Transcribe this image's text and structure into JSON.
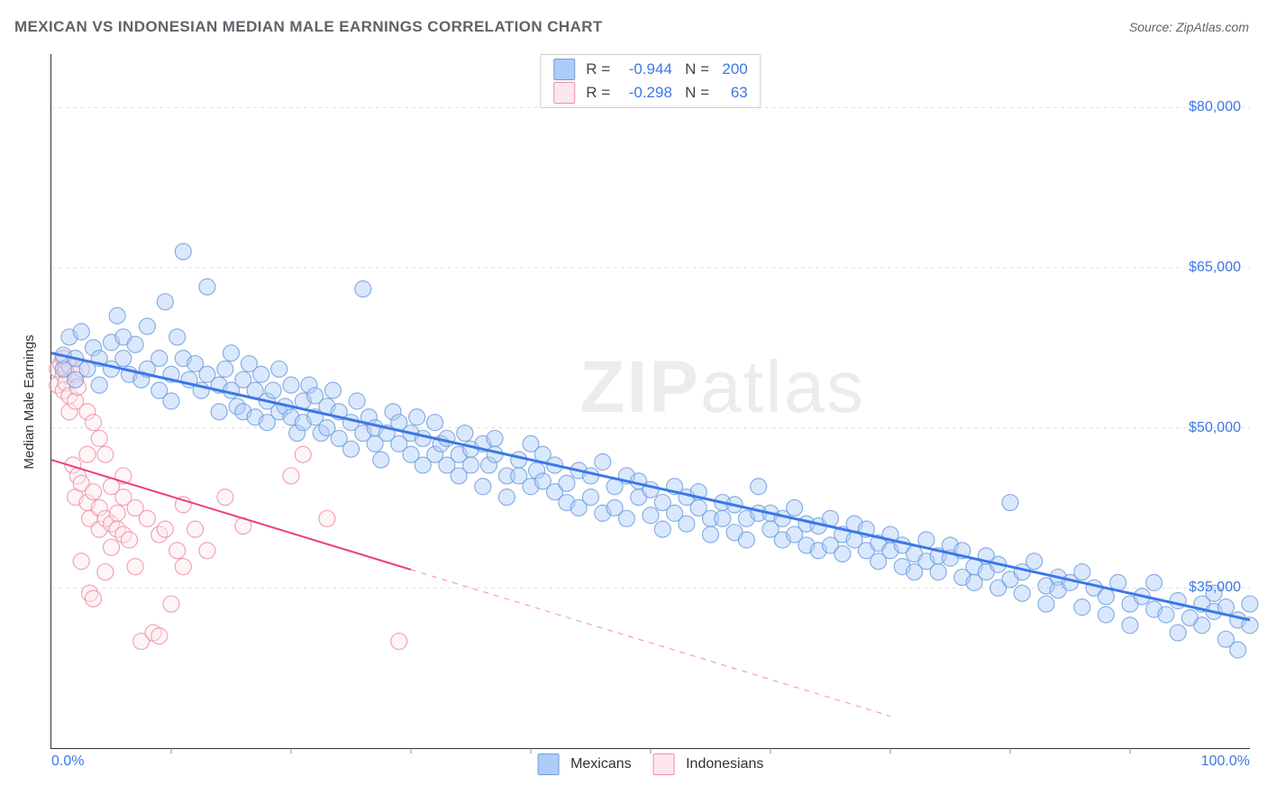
{
  "title": "MEXICAN VS INDONESIAN MEDIAN MALE EARNINGS CORRELATION CHART",
  "source_label": "Source: ZipAtlas.com",
  "ylabel": "Median Male Earnings",
  "watermark_zip": "ZIP",
  "watermark_atlas": "atlas",
  "chart": {
    "type": "scatter",
    "xlim": [
      0,
      100
    ],
    "ylim": [
      20000,
      85000
    ],
    "y_ticks": [
      35000,
      50000,
      65000,
      80000
    ],
    "y_tick_labels": [
      "$35,000",
      "$50,000",
      "$65,000",
      "$80,000"
    ],
    "x_tick_labels": {
      "left": "0.0%",
      "right": "100.0%"
    },
    "x_minor_ticks": [
      10,
      20,
      30,
      40,
      50,
      60,
      70,
      80,
      90
    ],
    "background_color": "#ffffff",
    "grid_color": "#dddddd",
    "axis_color": "#333333",
    "label_color": "#3b78e7",
    "marker_radius": 9,
    "marker_opacity": 0.45,
    "marker_stroke_opacity": 0.8,
    "series": [
      {
        "name": "Mexicans",
        "color_fill": "#aecbfa",
        "color_stroke": "#6f9edb",
        "trend_color": "#3b78e7",
        "trend_width": 3,
        "R": "-0.944",
        "N": "200",
        "trend_start": [
          0,
          57000
        ],
        "trend_end": [
          100,
          32000
        ],
        "trend_dash_from_pct": null,
        "points": [
          [
            1,
            55500
          ],
          [
            1,
            56800
          ],
          [
            1.5,
            58500
          ],
          [
            2,
            56500
          ],
          [
            2,
            54500
          ],
          [
            2.5,
            59000
          ],
          [
            3,
            55500
          ],
          [
            3.5,
            57500
          ],
          [
            4,
            56500
          ],
          [
            4,
            54000
          ],
          [
            5,
            55500
          ],
          [
            5,
            58000
          ],
          [
            5.5,
            60500
          ],
          [
            6,
            58500
          ],
          [
            6,
            56500
          ],
          [
            6.5,
            55000
          ],
          [
            7,
            57800
          ],
          [
            7.5,
            54500
          ],
          [
            8,
            59500
          ],
          [
            8,
            55500
          ],
          [
            9,
            56500
          ],
          [
            9,
            53500
          ],
          [
            9.5,
            61800
          ],
          [
            10,
            55000
          ],
          [
            10,
            52500
          ],
          [
            10.5,
            58500
          ],
          [
            11,
            56500
          ],
          [
            11,
            66500
          ],
          [
            11.5,
            54500
          ],
          [
            12,
            56000
          ],
          [
            12.5,
            53500
          ],
          [
            13,
            55000
          ],
          [
            13,
            63200
          ],
          [
            14,
            54000
          ],
          [
            14,
            51500
          ],
          [
            14.5,
            55500
          ],
          [
            15,
            53500
          ],
          [
            15,
            57000
          ],
          [
            15.5,
            52000
          ],
          [
            16,
            54500
          ],
          [
            16,
            51500
          ],
          [
            16.5,
            56000
          ],
          [
            17,
            51000
          ],
          [
            17,
            53500
          ],
          [
            17.5,
            55000
          ],
          [
            18,
            52500
          ],
          [
            18,
            50500
          ],
          [
            18.5,
            53500
          ],
          [
            19,
            51500
          ],
          [
            19,
            55500
          ],
          [
            19.5,
            52000
          ],
          [
            20,
            51000
          ],
          [
            20,
            54000
          ],
          [
            20.5,
            49500
          ],
          [
            21,
            52500
          ],
          [
            21,
            50500
          ],
          [
            21.5,
            54000
          ],
          [
            22,
            51000
          ],
          [
            22,
            53000
          ],
          [
            22.5,
            49500
          ],
          [
            23,
            52000
          ],
          [
            23,
            50000
          ],
          [
            23.5,
            53500
          ],
          [
            24,
            49000
          ],
          [
            24,
            51500
          ],
          [
            25,
            50500
          ],
          [
            25,
            48000
          ],
          [
            25.5,
            52500
          ],
          [
            26,
            49500
          ],
          [
            26,
            63000
          ],
          [
            26.5,
            51000
          ],
          [
            27,
            48500
          ],
          [
            27,
            50000
          ],
          [
            27.5,
            47000
          ],
          [
            28,
            49500
          ],
          [
            28.5,
            51500
          ],
          [
            29,
            48500
          ],
          [
            29,
            50500
          ],
          [
            30,
            47500
          ],
          [
            30,
            49500
          ],
          [
            30.5,
            51000
          ],
          [
            31,
            46500
          ],
          [
            31,
            49000
          ],
          [
            32,
            47500
          ],
          [
            32,
            50500
          ],
          [
            32.5,
            48500
          ],
          [
            33,
            46500
          ],
          [
            33,
            49000
          ],
          [
            34,
            47500
          ],
          [
            34,
            45500
          ],
          [
            34.5,
            49500
          ],
          [
            35,
            48000
          ],
          [
            35,
            46500
          ],
          [
            36,
            48500
          ],
          [
            36,
            44500
          ],
          [
            36.5,
            46500
          ],
          [
            37,
            49000
          ],
          [
            37,
            47500
          ],
          [
            38,
            45500
          ],
          [
            38,
            43500
          ],
          [
            39,
            47000
          ],
          [
            39,
            45500
          ],
          [
            40,
            48500
          ],
          [
            40,
            44500
          ],
          [
            40.5,
            46000
          ],
          [
            41,
            45000
          ],
          [
            41,
            47500
          ],
          [
            42,
            44000
          ],
          [
            42,
            46500
          ],
          [
            43,
            44800
          ],
          [
            43,
            43000
          ],
          [
            44,
            46000
          ],
          [
            44,
            42500
          ],
          [
            45,
            45500
          ],
          [
            45,
            43500
          ],
          [
            46,
            46800
          ],
          [
            46,
            42000
          ],
          [
            47,
            44500
          ],
          [
            47,
            42500
          ],
          [
            48,
            45500
          ],
          [
            48,
            41500
          ],
          [
            49,
            43500
          ],
          [
            49,
            45000
          ],
          [
            50,
            41800
          ],
          [
            50,
            44200
          ],
          [
            51,
            43000
          ],
          [
            51,
            40500
          ],
          [
            52,
            44500
          ],
          [
            52,
            42000
          ],
          [
            53,
            43500
          ],
          [
            53,
            41000
          ],
          [
            54,
            42500
          ],
          [
            54,
            44000
          ],
          [
            55,
            41500
          ],
          [
            55,
            40000
          ],
          [
            56,
            43000
          ],
          [
            56,
            41500
          ],
          [
            57,
            42800
          ],
          [
            57,
            40200
          ],
          [
            58,
            41500
          ],
          [
            58,
            39500
          ],
          [
            59,
            42000
          ],
          [
            59,
            44500
          ],
          [
            60,
            40500
          ],
          [
            60,
            42000
          ],
          [
            61,
            39500
          ],
          [
            61,
            41500
          ],
          [
            62,
            40000
          ],
          [
            62,
            42500
          ],
          [
            63,
            41000
          ],
          [
            63,
            39000
          ],
          [
            64,
            40800
          ],
          [
            64,
            38500
          ],
          [
            65,
            41500
          ],
          [
            65,
            39000
          ],
          [
            66,
            40000
          ],
          [
            66,
            38200
          ],
          [
            67,
            39500
          ],
          [
            67,
            41000
          ],
          [
            68,
            38500
          ],
          [
            68,
            40500
          ],
          [
            69,
            37500
          ],
          [
            69,
            39200
          ],
          [
            70,
            38500
          ],
          [
            70,
            40000
          ],
          [
            71,
            37000
          ],
          [
            71,
            39000
          ],
          [
            72,
            38200
          ],
          [
            72,
            36500
          ],
          [
            73,
            39500
          ],
          [
            73,
            37500
          ],
          [
            74,
            38000
          ],
          [
            74,
            36500
          ],
          [
            75,
            37800
          ],
          [
            75,
            39000
          ],
          [
            76,
            36000
          ],
          [
            76,
            38500
          ],
          [
            77,
            37000
          ],
          [
            77,
            35500
          ],
          [
            78,
            36500
          ],
          [
            78,
            38000
          ],
          [
            79,
            37200
          ],
          [
            79,
            35000
          ],
          [
            80,
            35800
          ],
          [
            80,
            43000
          ],
          [
            81,
            36500
          ],
          [
            81,
            34500
          ],
          [
            82,
            37500
          ],
          [
            83,
            35200
          ],
          [
            83,
            33500
          ],
          [
            84,
            36000
          ],
          [
            84,
            34800
          ],
          [
            85,
            35500
          ],
          [
            86,
            33200
          ],
          [
            86,
            36500
          ],
          [
            87,
            35000
          ],
          [
            88,
            34200
          ],
          [
            88,
            32500
          ],
          [
            89,
            35500
          ],
          [
            90,
            33500
          ],
          [
            90,
            31500
          ],
          [
            91,
            34200
          ],
          [
            92,
            33000
          ],
          [
            92,
            35500
          ],
          [
            93,
            32500
          ],
          [
            94,
            33800
          ],
          [
            94,
            30800
          ],
          [
            95,
            32200
          ],
          [
            96,
            33500
          ],
          [
            96,
            31500
          ],
          [
            97,
            32800
          ],
          [
            97,
            34500
          ],
          [
            98,
            30200
          ],
          [
            98,
            33200
          ],
          [
            99,
            32000
          ],
          [
            99,
            29200
          ],
          [
            100,
            33500
          ],
          [
            100,
            31500
          ]
        ]
      },
      {
        "name": "Indonesians",
        "color_fill": "#fce8ec",
        "color_stroke": "#f08ca5",
        "trend_color": "#ec407a",
        "trend_width": 2,
        "R": "-0.298",
        "N": "63",
        "trend_start": [
          0,
          47000
        ],
        "trend_end": [
          70,
          23000
        ],
        "trend_dash_from_pct": 30,
        "points": [
          [
            0.5,
            55500
          ],
          [
            0.5,
            54000
          ],
          [
            0.8,
            56000
          ],
          [
            1,
            55000
          ],
          [
            1,
            53500
          ],
          [
            1,
            56500
          ],
          [
            1.2,
            55500
          ],
          [
            1.2,
            54200
          ],
          [
            1.5,
            55800
          ],
          [
            1.5,
            53000
          ],
          [
            1.5,
            51500
          ],
          [
            1.8,
            46500
          ],
          [
            2,
            55000
          ],
          [
            2,
            52500
          ],
          [
            2,
            43500
          ],
          [
            2.2,
            53800
          ],
          [
            2.2,
            45500
          ],
          [
            2.5,
            44800
          ],
          [
            2.5,
            37500
          ],
          [
            2.5,
            55500
          ],
          [
            3,
            43000
          ],
          [
            3,
            51500
          ],
          [
            3,
            47500
          ],
          [
            3.2,
            41500
          ],
          [
            3.2,
            34500
          ],
          [
            3.5,
            50500
          ],
          [
            3.5,
            44000
          ],
          [
            3.5,
            34000
          ],
          [
            4,
            42500
          ],
          [
            4,
            49000
          ],
          [
            4,
            40500
          ],
          [
            4.5,
            41500
          ],
          [
            4.5,
            47500
          ],
          [
            4.5,
            36500
          ],
          [
            5,
            44500
          ],
          [
            5,
            41000
          ],
          [
            5,
            38800
          ],
          [
            5.5,
            40500
          ],
          [
            5.5,
            42000
          ],
          [
            6,
            43500
          ],
          [
            6,
            40000
          ],
          [
            6,
            45500
          ],
          [
            6.5,
            39500
          ],
          [
            7,
            42500
          ],
          [
            7,
            37000
          ],
          [
            7.5,
            30000
          ],
          [
            8,
            41500
          ],
          [
            8.5,
            30800
          ],
          [
            9,
            30500
          ],
          [
            9,
            40000
          ],
          [
            9.5,
            40500
          ],
          [
            10,
            33500
          ],
          [
            10.5,
            38500
          ],
          [
            11,
            37000
          ],
          [
            11,
            42800
          ],
          [
            12,
            40500
          ],
          [
            13,
            38500
          ],
          [
            14.5,
            43500
          ],
          [
            16,
            40800
          ],
          [
            20,
            45500
          ],
          [
            21,
            47500
          ],
          [
            23,
            41500
          ],
          [
            29,
            30000
          ]
        ]
      }
    ]
  },
  "bottom_legend": [
    {
      "swatch_fill": "#aecbfa",
      "swatch_stroke": "#6f9edb",
      "label": "Mexicans"
    },
    {
      "swatch_fill": "#fce8ec",
      "swatch_stroke": "#f08ca5",
      "label": "Indonesians"
    }
  ]
}
